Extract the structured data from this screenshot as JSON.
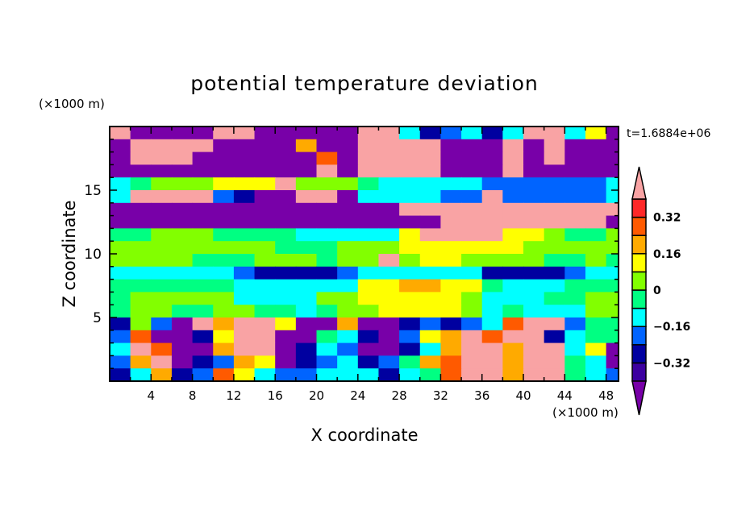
{
  "chart_data": {
    "type": "heatmap",
    "title": "potential temperature deviation",
    "xlabel": "X coordinate",
    "ylabel": "Z coordinate",
    "x_unit": "(×1000 m)",
    "y_unit": "(×1000 m)",
    "time_label": "t=1.6884e+06",
    "xlim": [
      0,
      49.2
    ],
    "ylim": [
      0,
      20
    ],
    "x_ticks": [
      4,
      8,
      12,
      16,
      20,
      24,
      28,
      32,
      36,
      40,
      44,
      48
    ],
    "x_tick_labels": [
      "4",
      "8",
      "12",
      "16",
      "20",
      "24",
      "28",
      "32",
      "36",
      "40",
      "44",
      "48"
    ],
    "y_ticks": [
      5,
      10,
      15
    ],
    "y_tick_labels": [
      "5",
      "10",
      "15"
    ],
    "grid": false,
    "cell_dx": 2,
    "cell_dz": 1,
    "colorbar": {
      "levels": [
        -0.4,
        -0.32,
        -0.24,
        -0.16,
        -0.08,
        0,
        0.08,
        0.16,
        0.24,
        0.32,
        0.4
      ],
      "colors": [
        "#3c00a0",
        "#0000a0",
        "#0064ff",
        "#00ffff",
        "#00ff82",
        "#82ff00",
        "#ffff00",
        "#ffaa00",
        "#ff5a00",
        "#ff2828"
      ],
      "under_color": "#7800a8",
      "over_color": "#f9a3a4",
      "tick_values": [
        0.32,
        0.16,
        0,
        -0.16,
        -0.32
      ],
      "tick_labels": [
        "0.32",
        "0.16",
        "0",
        "−0.16",
        "−0.32"
      ],
      "placement": "right"
    },
    "code_values": {
      "P": -0.45,
      "D": -0.36,
      "N": -0.28,
      "B": -0.2,
      "C": -0.12,
      "G": -0.04,
      "L": 0.04,
      "Y": 0.12,
      "O": 0.2,
      "R": 0.28,
      "r": 0.36,
      "K": 0.45
    },
    "rows_top_to_bottom": [
      "KPPPPKKPPPPPKKCNBCNCKKCYP",
      "PKKKKPPPPOPPKKKKPPPKPKPPP",
      "PKKKPPPPPPRPKKKKPPPKPKPPP",
      "PPPPPPPPPPKPKKKKPPPKPPPPP",
      "CGLLLYYYKLLLGCCCCCBBBBBBC",
      "CKKKKBNPPKKPCCCCBBKBBBBBC",
      "PPPPPPPPPPPPPPKKKKKKKKKKK",
      "PPPPPPPPPPPPPPPPKKKKKKKKP",
      "GGLLLGGGGCCCCCYKKKKYYLGGL",
      "LLLLLLLLGGGLLLYYYYYYLLLLL",
      "LLLLGGGLLLGLLKLYYLLLLGGLG",
      "CCCCCCBNNNNBCCCCCCNNNNBCC",
      "GGGGGGCCCCCCYYOOYYGCCCGGG",
      "GLLLLLCCCCLLYYYYYLCCCGGLL",
      "GLLGGLLGGCGLLYYYYLCGCCCLL",
      "NLBPKOKKYPPOPPNBNBCRKKBGG",
      "BRPPNYKKPPGCNPBYOKRKKNCGG",
      "CKRPPOKKPNCBPPNCOKKOKKCYP",
      "BOKPNBOYPNBCNBGORKKOKKGCP",
      "NCONBRYCBBCCCNCGRKKOKKGCB"
    ]
  }
}
